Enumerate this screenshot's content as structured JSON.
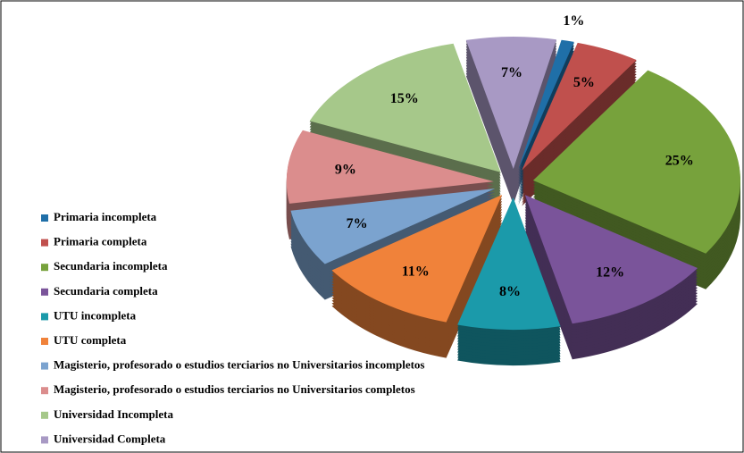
{
  "chart_data": {
    "type": "pie",
    "categories": [
      "Primaria incompleta",
      "Primaria completa",
      "Secundaria incompleta",
      "Secundaria completa",
      "UTU incompleta",
      "UTU completa",
      "Magisterio, profesorado o estudios terciarios no Universitarios incompletos",
      "Magisterio, profesorado o estudios terciarios no Universitarios completos",
      "Universidad Incompleta",
      "Universidad Completa"
    ],
    "values": [
      1,
      5,
      25,
      12,
      8,
      11,
      7,
      9,
      15,
      7
    ],
    "value_labels": [
      "1%",
      "5%",
      "25%",
      "12%",
      "8%",
      "11%",
      "7%",
      "9%",
      "15%",
      "7%"
    ],
    "colors": [
      "#1f6fa8",
      "#c0504d",
      "#77a23c",
      "#7a549a",
      "#1b9aaa",
      "#f0823a",
      "#7ba3cf",
      "#db8d8d",
      "#a6c88a",
      "#a899c4"
    ],
    "legend": "left"
  }
}
